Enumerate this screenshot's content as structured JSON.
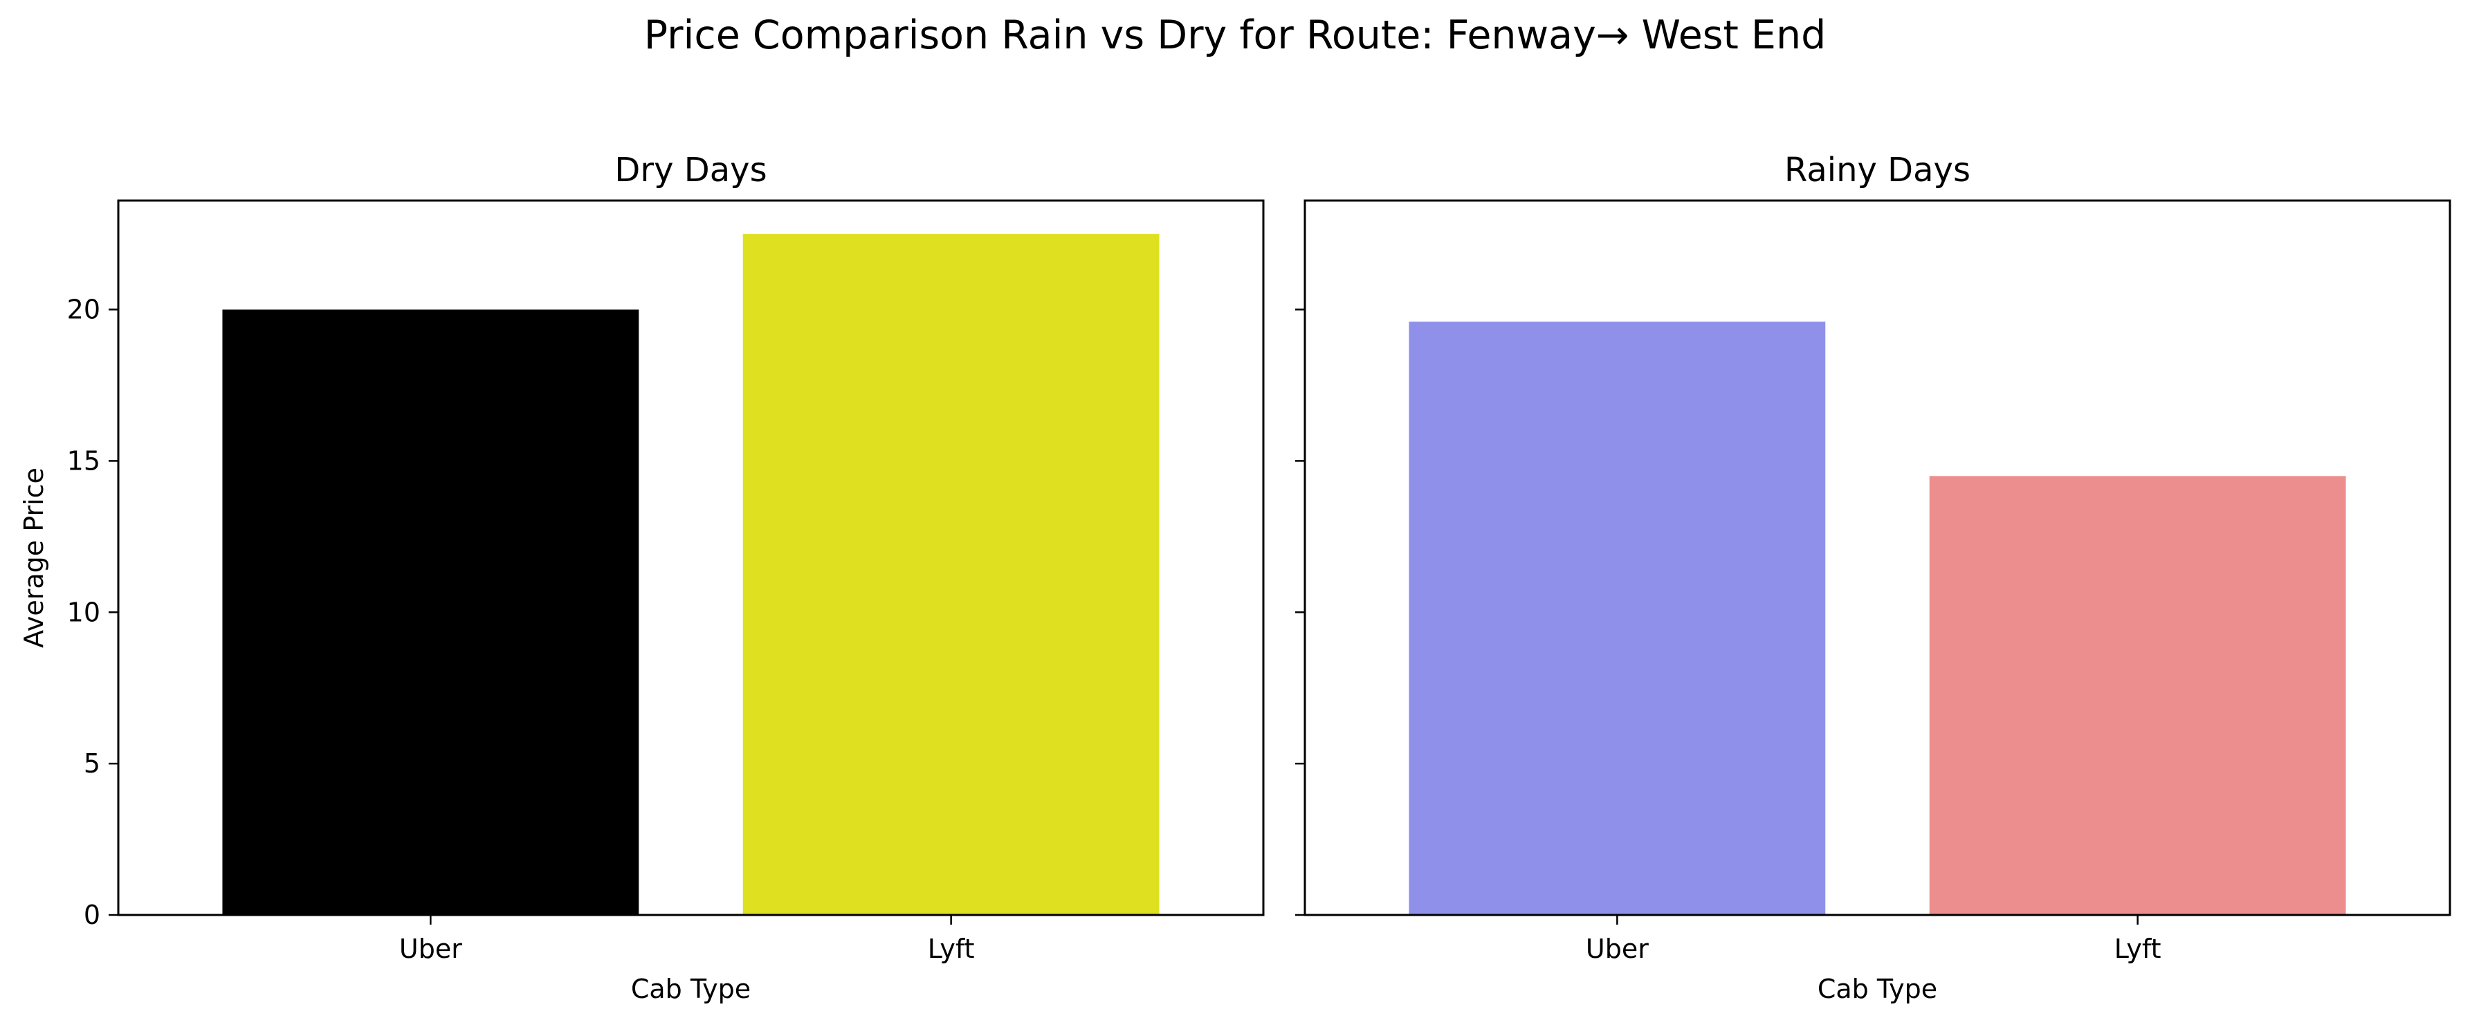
{
  "figure": {
    "title": "Price Comparison Rain vs Dry for Route: Fenway→ West End"
  },
  "chart_data": [
    {
      "type": "bar",
      "title": "Dry Days",
      "xlabel": "Cab Type",
      "ylabel": "Average Price",
      "categories": [
        "Uber",
        "Lyft"
      ],
      "values": [
        20.0,
        22.5
      ],
      "colors": [
        "#000000",
        "#dfe020"
      ],
      "ylim": [
        0,
        23.6
      ],
      "yticks": [
        0,
        5,
        10,
        15,
        20
      ],
      "grid": false,
      "sharey": true
    },
    {
      "type": "bar",
      "title": "Rainy Days",
      "xlabel": "Cab Type",
      "ylabel": "",
      "categories": [
        "Uber",
        "Lyft"
      ],
      "values": [
        19.6,
        14.5
      ],
      "colors": [
        "#8e90ea",
        "#ec8e8e"
      ],
      "ylim": [
        0,
        23.6
      ],
      "yticks": [
        0,
        5,
        10,
        15,
        20
      ],
      "grid": false,
      "sharey": true,
      "ytick_labels_visible": false
    }
  ]
}
